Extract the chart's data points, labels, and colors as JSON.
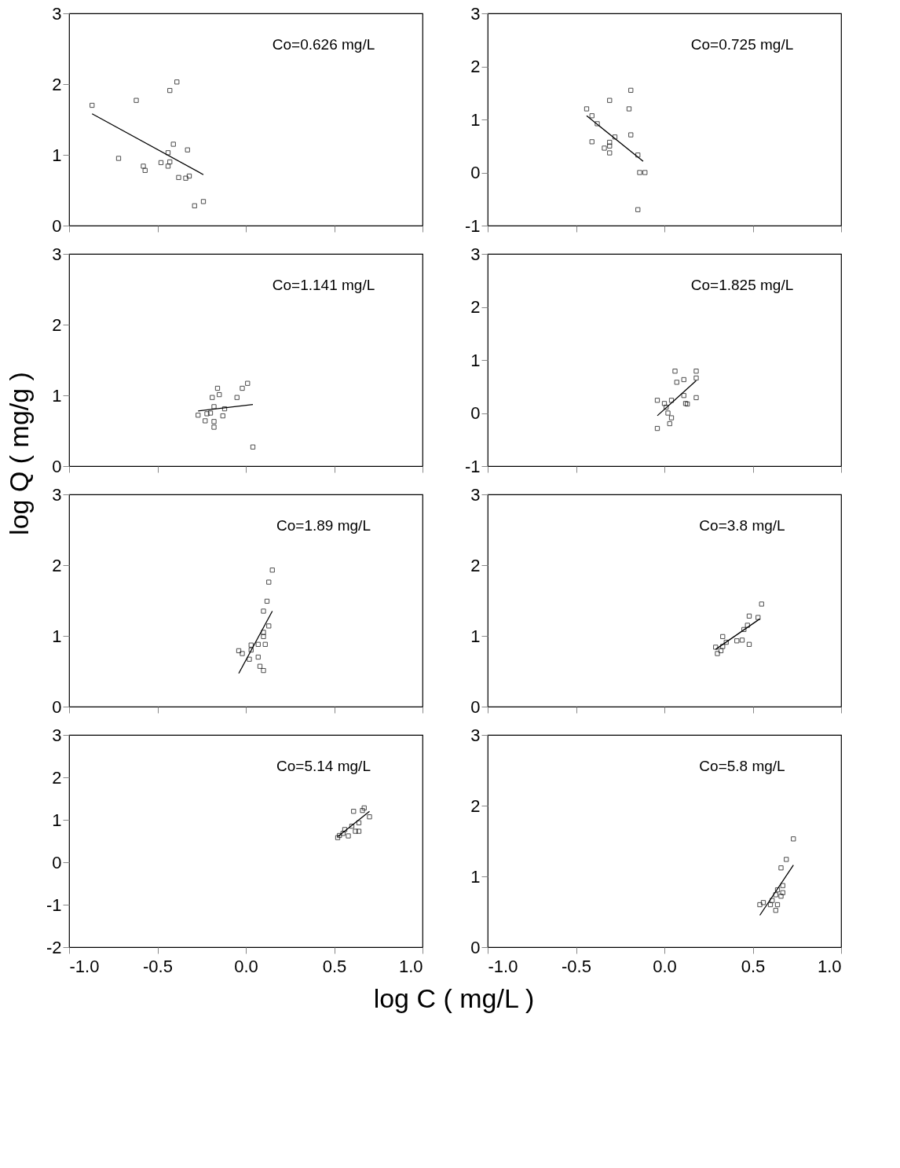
{
  "chart_data": [
    {
      "type": "scatter",
      "ylabel": "log Q ( mg/g )",
      "annotations": [
        "Co=0.626 mg/L"
      ],
      "xlim": [
        -1,
        1
      ],
      "ylim": [
        0,
        3
      ],
      "xticks": [
        {
          "value": -1,
          "label": null
        },
        {
          "value": -0.5,
          "label": null
        },
        {
          "value": 0,
          "label": null
        },
        {
          "value": 0.5,
          "label": null
        },
        {
          "value": 1,
          "label": null
        }
      ],
      "yticks": [
        0,
        1,
        2,
        3
      ],
      "tick_labels": "y",
      "grid": false,
      "line_style": "solid",
      "series": [
        {
          "marker": "square",
          "color": "#000000",
          "x": [
            -0.87,
            -0.72,
            -0.62,
            -0.58,
            -0.57,
            -0.48,
            -0.44,
            -0.44,
            -0.43,
            -0.43,
            -0.41,
            -0.39,
            -0.38,
            -0.33,
            -0.34,
            -0.32,
            -0.29,
            -0.24
          ],
          "values": [
            1.7,
            0.95,
            1.77,
            0.84,
            0.78,
            0.89,
            0.84,
            1.03,
            1.91,
            0.9,
            1.15,
            2.03,
            0.68,
            1.07,
            0.67,
            0.7,
            0.28,
            0.34
          ]
        },
        {
          "type": "line",
          "color": "#000000",
          "x": [
            -0.87,
            -0.24
          ],
          "values": [
            1.58,
            0.72
          ]
        }
      ]
    },
    {
      "type": "scatter",
      "annotations": [
        "Co=0.725 mg/L"
      ],
      "xlim": [
        -1,
        1
      ],
      "ylim": [
        -1,
        3
      ],
      "xticks": [
        {
          "value": -1,
          "label": null
        },
        {
          "value": -0.5,
          "label": null
        },
        {
          "value": 0,
          "label": null
        },
        {
          "value": 0.5,
          "label": null
        },
        {
          "value": 1,
          "label": null
        }
      ],
      "yticks": [
        -1,
        0,
        1,
        2,
        3
      ],
      "tick_labels": "y",
      "grid": false,
      "line_style": "solid",
      "series": [
        {
          "marker": "square",
          "color": "#000000",
          "x": [
            -0.44,
            -0.41,
            -0.38,
            -0.41,
            -0.34,
            -0.31,
            -0.31,
            -0.31,
            -0.31,
            -0.28,
            -0.19,
            -0.2,
            -0.19,
            -0.15,
            -0.14,
            -0.11,
            -0.15
          ],
          "values": [
            1.2,
            1.07,
            0.92,
            0.58,
            0.46,
            1.36,
            0.57,
            0.5,
            0.37,
            0.67,
            1.55,
            1.2,
            0.71,
            0.33,
            0.0,
            0.0,
            -0.7
          ]
        },
        {
          "type": "line",
          "color": "#000000",
          "x": [
            -0.44,
            -0.12
          ],
          "values": [
            1.07,
            0.21
          ]
        }
      ]
    },
    {
      "type": "scatter",
      "annotations": [
        "Co=1.141 mg/L"
      ],
      "xlim": [
        -1,
        1
      ],
      "ylim": [
        0,
        3
      ],
      "xticks": [
        {
          "value": -1,
          "label": null
        },
        {
          "value": -0.5,
          "label": null
        },
        {
          "value": 0,
          "label": null
        },
        {
          "value": 0.5,
          "label": null
        },
        {
          "value": 1,
          "label": null
        }
      ],
      "yticks": [
        0,
        1,
        2,
        3
      ],
      "tick_labels": "y",
      "grid": false,
      "line_style": "solid",
      "series": [
        {
          "marker": "square",
          "color": "#000000",
          "x": [
            -0.27,
            -0.23,
            -0.22,
            -0.2,
            -0.19,
            -0.18,
            -0.18,
            -0.18,
            -0.16,
            -0.15,
            -0.13,
            -0.12,
            -0.05,
            -0.02,
            0.01,
            0.04
          ],
          "values": [
            0.72,
            0.64,
            0.74,
            0.75,
            0.97,
            0.84,
            0.63,
            0.55,
            1.1,
            1.01,
            0.71,
            0.81,
            0.97,
            1.1,
            1.17,
            0.27
          ]
        },
        {
          "type": "line",
          "color": "#000000",
          "x": [
            -0.27,
            0.04
          ],
          "values": [
            0.78,
            0.87
          ]
        }
      ]
    },
    {
      "type": "scatter",
      "annotations": [
        "Co=1.825 mg/L"
      ],
      "xlim": [
        -1,
        1
      ],
      "ylim": [
        -1,
        3
      ],
      "xticks": [
        {
          "value": -1,
          "label": null
        },
        {
          "value": -0.5,
          "label": null
        },
        {
          "value": 0,
          "label": null
        },
        {
          "value": 0.5,
          "label": null
        },
        {
          "value": 1,
          "label": null
        }
      ],
      "yticks": [
        -1,
        0,
        1,
        2,
        3
      ],
      "tick_labels": "y",
      "grid": false,
      "line_style": "solid",
      "series": [
        {
          "marker": "square",
          "color": "#000000",
          "x": [
            -0.04,
            -0.04,
            0.0,
            0.01,
            0.02,
            0.04,
            0.04,
            0.03,
            0.06,
            0.07,
            0.11,
            0.11,
            0.12,
            0.13,
            0.18,
            0.18,
            0.18
          ],
          "values": [
            0.24,
            -0.29,
            0.18,
            0.11,
            0.0,
            0.24,
            -0.09,
            -0.2,
            0.79,
            0.58,
            0.63,
            0.33,
            0.18,
            0.17,
            0.79,
            0.66,
            0.29
          ]
        },
        {
          "type": "line",
          "color": "#000000",
          "x": [
            -0.04,
            0.18
          ],
          "values": [
            -0.05,
            0.61
          ]
        }
      ]
    },
    {
      "type": "scatter",
      "annotations": [
        "Co=1.89 mg/L"
      ],
      "xlim": [
        -1,
        1
      ],
      "ylim": [
        0,
        3
      ],
      "xticks": [
        {
          "value": -1,
          "label": null
        },
        {
          "value": -0.5,
          "label": null
        },
        {
          "value": 0,
          "label": null
        },
        {
          "value": 0.5,
          "label": null
        },
        {
          "value": 1,
          "label": null
        }
      ],
      "yticks": [
        0,
        1,
        2,
        3
      ],
      "tick_labels": "y",
      "grid": false,
      "line_style": "solid",
      "series": [
        {
          "marker": "square",
          "color": "#000000",
          "x": [
            -0.04,
            -0.02,
            0.02,
            0.03,
            0.03,
            0.07,
            0.07,
            0.08,
            0.1,
            0.11,
            0.1,
            0.1,
            0.13,
            0.1,
            0.12,
            0.13,
            0.15
          ],
          "values": [
            0.79,
            0.75,
            0.67,
            0.8,
            0.87,
            0.7,
            0.88,
            0.57,
            0.51,
            0.88,
            0.99,
            1.05,
            1.14,
            1.35,
            1.49,
            1.76,
            1.93
          ]
        },
        {
          "type": "line",
          "color": "#000000",
          "x": [
            -0.04,
            0.15
          ],
          "values": [
            0.47,
            1.35
          ]
        }
      ]
    },
    {
      "type": "scatter",
      "annotations": [
        "Co=3.8 mg/L"
      ],
      "xlim": [
        -1,
        1
      ],
      "ylim": [
        0,
        3
      ],
      "xticks": [
        {
          "value": -1,
          "label": null
        },
        {
          "value": -0.5,
          "label": null
        },
        {
          "value": 0,
          "label": null
        },
        {
          "value": 0.5,
          "label": null
        },
        {
          "value": 1,
          "label": null
        }
      ],
      "yticks": [
        0,
        1,
        2,
        3
      ],
      "tick_labels": "y",
      "grid": false,
      "line_style": "solid",
      "series": [
        {
          "marker": "square",
          "color": "#000000",
          "x": [
            0.29,
            0.3,
            0.32,
            0.33,
            0.33,
            0.35,
            0.41,
            0.44,
            0.48,
            0.45,
            0.47,
            0.48,
            0.53,
            0.55
          ],
          "values": [
            0.84,
            0.75,
            0.79,
            0.99,
            0.85,
            0.91,
            0.93,
            0.94,
            0.88,
            1.09,
            1.15,
            1.28,
            1.26,
            1.45
          ]
        },
        {
          "type": "line",
          "color": "#000000",
          "x": [
            0.29,
            0.54
          ],
          "values": [
            0.81,
            1.24
          ]
        }
      ]
    },
    {
      "type": "scatter",
      "xlabel": "log C ( mg/L )",
      "annotations": [
        "Co=5.14 mg/L"
      ],
      "xlim": [
        -1,
        1
      ],
      "ylim": [
        -2,
        3
      ],
      "xticks": [
        {
          "value": -1,
          "label": "-1.0"
        },
        {
          "value": -0.5,
          "label": "-0.5"
        },
        {
          "value": 0,
          "label": "0.0"
        },
        {
          "value": 0.5,
          "label": "0.5"
        },
        {
          "value": 1,
          "label": "1.0"
        }
      ],
      "yticks": [
        -2,
        -1,
        0,
        1,
        2,
        3
      ],
      "grid": false,
      "line_style": "solid",
      "series": [
        {
          "marker": "square",
          "color": "#000000",
          "x": [
            0.52,
            0.53,
            0.55,
            0.56,
            0.58,
            0.6,
            0.61,
            0.62,
            0.64,
            0.64,
            0.66,
            0.67,
            0.7
          ],
          "values": [
            0.58,
            0.63,
            0.68,
            0.77,
            0.62,
            0.85,
            1.2,
            0.73,
            0.93,
            0.73,
            1.22,
            1.28,
            1.07
          ]
        },
        {
          "type": "line",
          "color": "#000000",
          "x": [
            0.52,
            0.7
          ],
          "values": [
            0.6,
            1.2
          ]
        }
      ]
    },
    {
      "type": "scatter",
      "annotations": [
        "Co=5.8 mg/L"
      ],
      "xlim": [
        -1,
        1
      ],
      "ylim": [
        0,
        3
      ],
      "xticks": [
        {
          "value": -1,
          "label": "-1.0"
        },
        {
          "value": -0.5,
          "label": "-0.5"
        },
        {
          "value": 0,
          "label": "0.0"
        },
        {
          "value": 0.5,
          "label": "0.5"
        },
        {
          "value": 1,
          "label": "1.0"
        }
      ],
      "yticks": [
        0,
        1,
        2,
        3
      ],
      "grid": false,
      "line_style": "solid",
      "series": [
        {
          "marker": "square",
          "color": "#000000",
          "x": [
            0.54,
            0.56,
            0.6,
            0.61,
            0.63,
            0.63,
            0.64,
            0.64,
            0.66,
            0.67,
            0.67,
            0.66,
            0.69,
            0.73
          ],
          "values": [
            0.6,
            0.63,
            0.6,
            0.66,
            0.52,
            0.74,
            0.81,
            0.6,
            0.72,
            0.77,
            0.87,
            1.12,
            1.24,
            1.53
          ]
        },
        {
          "type": "line",
          "color": "#000000",
          "x": [
            0.54,
            0.73
          ],
          "values": [
            0.45,
            1.16
          ]
        }
      ]
    }
  ]
}
